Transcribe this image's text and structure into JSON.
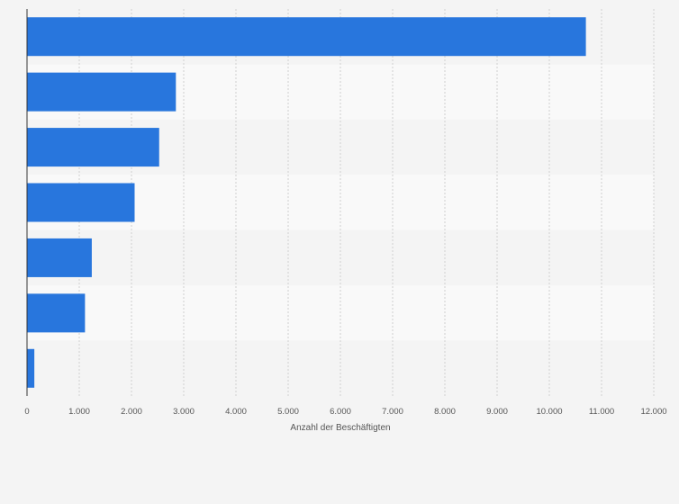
{
  "chart_data": {
    "type": "bar",
    "orientation": "horizontal",
    "categories": [
      "",
      "",
      "",
      "",
      "",
      "",
      ""
    ],
    "values": [
      10700,
      2850,
      2530,
      2060,
      1240,
      1110,
      140
    ],
    "xlabel": "Anzahl der Beschäftigten",
    "ylabel": "",
    "xlim": [
      0,
      12000
    ],
    "x_ticks": [
      0,
      1000,
      2000,
      3000,
      4000,
      5000,
      6000,
      7000,
      8000,
      9000,
      10000,
      11000,
      12000
    ],
    "x_tick_labels": [
      "0",
      "1.000",
      "2.000",
      "3.000",
      "4.000",
      "5.000",
      "6.000",
      "7.000",
      "8.000",
      "9.000",
      "10.000",
      "11.000",
      "12.000"
    ],
    "grid": true,
    "bar_color": "#2876dd",
    "band_colors": [
      "#f4f4f4",
      "#f9f9f9"
    ]
  }
}
